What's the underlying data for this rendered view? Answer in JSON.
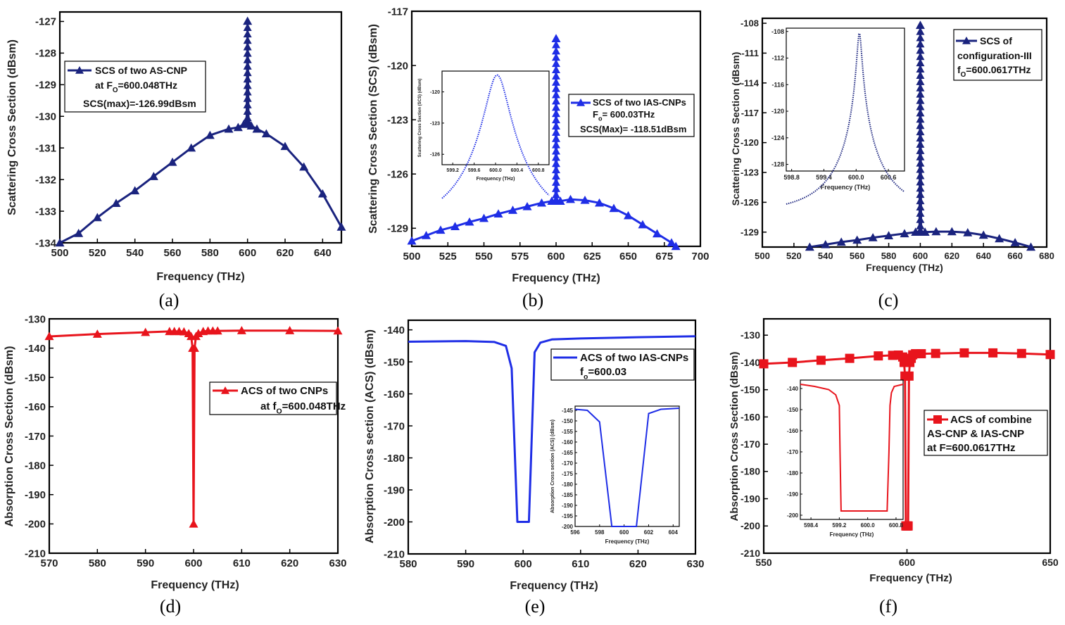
{
  "figure": {
    "captions": [
      "(a)",
      "(b)",
      "(c)",
      "(d)",
      "(e)",
      "(f)"
    ]
  },
  "chart_data": [
    {
      "id": "a",
      "type": "line",
      "xlabel": "Frequency (THz)",
      "ylabel": "Scattering Cross Section (dBsm)",
      "xlim": [
        500,
        650
      ],
      "ylim": [
        -134,
        -126.7
      ],
      "xticks": [
        500,
        520,
        540,
        560,
        580,
        600,
        620,
        640
      ],
      "yticks": [
        -134,
        -133,
        -132,
        -131,
        -130,
        -129,
        -128,
        -127
      ],
      "color": "#1a237e",
      "marker": "triangle",
      "legend": {
        "line1": "SCS of two AS-CNP",
        "line2": "at F",
        "sub": "O",
        "line2b": "=600.048THz",
        "line3": "SCS(max)=-126.99dBsm"
      },
      "series": [
        {
          "name": "SCS of two AS-CNP",
          "x": [
            500,
            510,
            520,
            530,
            540,
            550,
            560,
            570,
            580,
            590,
            595,
            598,
            599.5,
            600,
            600.5,
            602,
            605,
            610,
            620,
            630,
            640,
            650
          ],
          "y": [
            -134,
            -133.7,
            -133.2,
            -132.75,
            -132.35,
            -131.9,
            -131.45,
            -131,
            -130.6,
            -130.4,
            -130.35,
            -130.25,
            -130.2,
            -126.99,
            -130.2,
            -130.3,
            -130.4,
            -130.55,
            -130.95,
            -131.6,
            -132.45,
            -133.5
          ]
        }
      ],
      "peak": {
        "x": 600,
        "y": -126.99,
        "base": -130.25
      }
    },
    {
      "id": "b",
      "type": "line",
      "xlabel": "Frequency (THz)",
      "ylabel": "Scattering Cross Section (SCS) (dBsm)",
      "xlim": [
        500,
        700
      ],
      "ylim": [
        -130,
        -117
      ],
      "xticks": [
        500,
        525,
        550,
        575,
        600,
        625,
        650,
        675,
        700
      ],
      "yticks": [
        -129,
        -126,
        -123,
        -120,
        -117
      ],
      "color": "#1f2ee6",
      "marker": "triangle",
      "legend": {
        "line1": "SCS of two IAS-CNPs",
        "line2": "F",
        "sub": "o",
        "line2b": "= 600.03THz",
        "line3": "SCS(Max)= -118.51dBsm"
      },
      "series": [
        {
          "name": "SCS of two IAS-CNPs",
          "x": [
            500,
            510,
            520,
            530,
            540,
            550,
            560,
            570,
            580,
            590,
            597,
            599.5,
            600,
            600.5,
            603,
            610,
            620,
            630,
            640,
            650,
            660,
            670,
            680,
            683
          ],
          "y": [
            -129.7,
            -129.4,
            -129.1,
            -128.9,
            -128.65,
            -128.45,
            -128.2,
            -128,
            -127.8,
            -127.6,
            -127.5,
            -127.5,
            -118.51,
            -127.5,
            -127.5,
            -127.4,
            -127.45,
            -127.6,
            -127.9,
            -128.3,
            -128.8,
            -129.3,
            -129.8,
            -130
          ]
        }
      ],
      "peak": {
        "x": 600,
        "y": -118.51,
        "base": -127.5
      },
      "inset": {
        "xlabel": "Frequency (THz)",
        "ylabel": "Scattering Cross Section (SCS) (dBsm)",
        "xlim": [
          599,
          601
        ],
        "ylim": [
          -127,
          -118
        ],
        "xticks": [
          599.2,
          599.6,
          600.0,
          600.4,
          600.8
        ],
        "yticks": [
          -120,
          -123,
          -126
        ],
        "center": 600.03,
        "peak": -118.51,
        "gamma": 0.2,
        "floor": -126.6
      }
    },
    {
      "id": "c",
      "type": "line",
      "xlabel": "Frequency (THz)",
      "ylabel": "Scattering Cross Section (dBsm)",
      "xlim": [
        500,
        680
      ],
      "ylim": [
        -130.5,
        -107.5
      ],
      "xticks": [
        500,
        520,
        540,
        560,
        580,
        600,
        620,
        640,
        660,
        680
      ],
      "yticks": [
        -108,
        -111,
        -114,
        -117,
        -120,
        -123,
        -126,
        -129
      ],
      "color": "#1a237e",
      "marker": "triangle",
      "legend": {
        "line1": "SCS of",
        "line2": "configuration-III",
        "line3a": "f",
        "sub": "O",
        "line3b": "=600.0617THz"
      },
      "series": [
        {
          "name": "SCS of configuration-III",
          "x": [
            530,
            540,
            550,
            560,
            570,
            580,
            590,
            597,
            599.5,
            600,
            600.5,
            603,
            610,
            620,
            630,
            640,
            650,
            660,
            670
          ],
          "y": [
            -130.5,
            -130.25,
            -130,
            -129.8,
            -129.55,
            -129.35,
            -129.15,
            -129,
            -129,
            -108.2,
            -129,
            -129,
            -128.95,
            -128.95,
            -129.05,
            -129.3,
            -129.65,
            -130.05,
            -130.5
          ]
        }
      ],
      "peak": {
        "x": 600,
        "y": -108.2,
        "base": -129
      },
      "inset": {
        "xlabel": "Frequency (THz)",
        "xlim": [
          598.7,
          600.9
        ],
        "ylim": [
          -129,
          -107.5
        ],
        "xticks": [
          598.8,
          599.4,
          600.0,
          600.6
        ],
        "yticks": [
          -108,
          -112,
          -116,
          -120,
          -124,
          -128
        ],
        "center": 600.06,
        "peak": -108.2,
        "gamma": 0.04,
        "floor": -128.7
      }
    },
    {
      "id": "d",
      "type": "line",
      "xlabel": "Frequency (THz)",
      "ylabel": "Absorption Cross Section (dBsm)",
      "xlim": [
        570,
        630
      ],
      "ylim": [
        -210,
        -130
      ],
      "xticks": [
        570,
        580,
        590,
        600,
        610,
        620,
        630
      ],
      "yticks": [
        -130,
        -140,
        -150,
        -160,
        -170,
        -180,
        -190,
        -200,
        -210
      ],
      "color": "#e8141c",
      "marker": "triangle",
      "legend": {
        "line1": "ACS of two CNPs",
        "line2": "at f",
        "sub": "O",
        "line2b": "=600.048THz"
      },
      "series": [
        {
          "name": "ACS of two CNPs",
          "x": [
            570,
            580,
            590,
            595,
            596,
            597,
            598,
            599,
            599.5,
            599.8,
            600,
            600.2,
            600.5,
            601,
            602,
            603,
            604,
            605,
            610,
            620,
            630
          ],
          "y": [
            -136,
            -135.2,
            -134.6,
            -134.3,
            -134.3,
            -134.3,
            -134.4,
            -135,
            -136,
            -140,
            -200,
            -140,
            -136,
            -135,
            -134.3,
            -134.1,
            -134.1,
            -134.1,
            -134,
            -134,
            -134.1
          ]
        }
      ]
    },
    {
      "id": "e",
      "type": "line",
      "xlabel": "Frequency (THz)",
      "ylabel": "Absorption Cross section (ACS) (dBsm)",
      "xlim": [
        580,
        630
      ],
      "ylim": [
        -210,
        -137
      ],
      "xticks": [
        580,
        590,
        600,
        610,
        620,
        630
      ],
      "yticks": [
        -140,
        -150,
        -160,
        -170,
        -180,
        -190,
        -200,
        -210
      ],
      "color": "#1f2ee6",
      "marker": "none",
      "legend": {
        "line1": "ACS of two IAS-CNPs",
        "line2": "f",
        "sub": "o",
        "line2b": "=600.03"
      },
      "series": [
        {
          "name": "ACS of two IAS-CNPs",
          "x": [
            580,
            590,
            595,
            597,
            598,
            599,
            601,
            602,
            603,
            605,
            610,
            620,
            630
          ],
          "y": [
            -143.7,
            -143.5,
            -143.8,
            -145,
            -152,
            -200,
            -200,
            -147,
            -144,
            -143,
            -142.7,
            -142.3,
            -142
          ]
        }
      ],
      "inset": {
        "xlabel": "Frequency (THz)",
        "ylabel": "Absorption Cross section (ACS) (dBsm)",
        "xlim": [
          596,
          604.5
        ],
        "ylim": [
          -200,
          -143
        ],
        "xticks": [
          596,
          598,
          600,
          602,
          604
        ],
        "yticks": [
          -145,
          -150,
          -155,
          -160,
          -165,
          -170,
          -175,
          -180,
          -185,
          -190,
          -195,
          -200
        ],
        "x": [
          596,
          597,
          598,
          599,
          601,
          602,
          603,
          604.5
        ],
        "y": [
          -144.5,
          -145,
          -150.5,
          -200,
          -200,
          -146.5,
          -144.5,
          -144
        ]
      }
    },
    {
      "id": "f",
      "type": "line",
      "xlabel": "Frequency (THz)",
      "ylabel": "Absorption Cross Section (dBsm)",
      "xlim": [
        550,
        650
      ],
      "ylim": [
        -210,
        -124
      ],
      "xticks": [
        550,
        600,
        650
      ],
      "yticks": [
        -130,
        -140,
        -150,
        -160,
        -170,
        -180,
        -190,
        -200,
        -210
      ],
      "color": "#e8141c",
      "marker": "square",
      "legend": {
        "line1": "ACS of combine",
        "line2": "AS-CNP & IAS-CNP",
        "line3": "at F=600.0617THz"
      },
      "series": [
        {
          "name": "ACS of combine AS-CNP & IAS-CNP",
          "x": [
            550,
            560,
            570,
            580,
            590,
            595,
            597,
            598.5,
            599,
            599.3,
            599.6,
            599.9,
            600.1,
            600.4,
            600.7,
            601,
            601.5,
            602,
            603,
            605,
            610,
            620,
            630,
            640,
            650
          ],
          "y": [
            -140.5,
            -140,
            -139.2,
            -138.5,
            -137.6,
            -137.4,
            -137.3,
            -138,
            -140,
            -145,
            -200,
            -200,
            -200,
            -200,
            -145,
            -140,
            -138.5,
            -137.2,
            -136.8,
            -136.8,
            -136.7,
            -136.5,
            -136.5,
            -136.7,
            -137.1
          ]
        }
      ],
      "inset": {
        "xlabel": "Frequency (THz)",
        "xlim": [
          598.1,
          601.0
        ],
        "ylim": [
          -202,
          -136
        ],
        "xticks": [
          598.4,
          599.2,
          600.0,
          600.8
        ],
        "yticks": [
          -140,
          -150,
          -160,
          -170,
          -180,
          -190,
          -200
        ],
        "x": [
          598.1,
          598.5,
          598.9,
          599.1,
          599.2,
          599.22,
          599.25,
          600.55,
          600.6,
          600.63,
          600.67,
          600.75,
          601.0
        ],
        "y": [
          -138,
          -139,
          -140.5,
          -143,
          -148,
          -170,
          -198,
          -198,
          -170,
          -148,
          -142,
          -139,
          -138
        ]
      }
    }
  ]
}
